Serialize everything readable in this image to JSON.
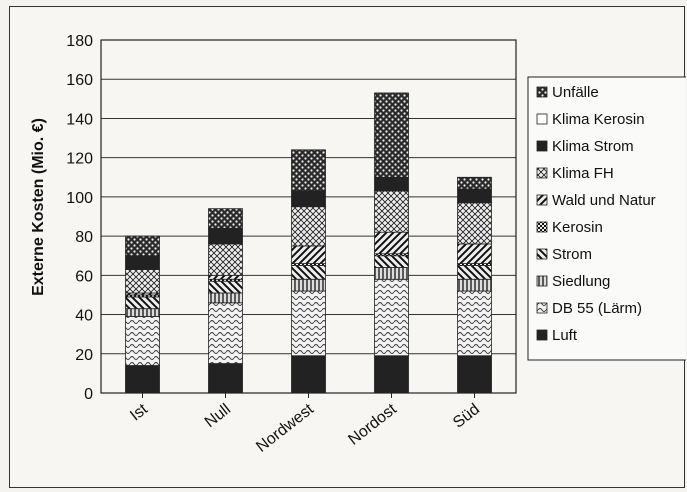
{
  "chart_data": {
    "type": "bar",
    "stacked": true,
    "categories": [
      "Ist",
      "Null",
      "Nordwest",
      "Nordost",
      "Süd"
    ],
    "ylabel": "Externe Kosten (Mio. €)",
    "xlabel": "",
    "title": "",
    "ylim": [
      0,
      180
    ],
    "yticks": [
      0,
      20,
      40,
      60,
      80,
      100,
      120,
      140,
      160,
      180
    ],
    "grid": true,
    "legend_position": "right",
    "series": [
      {
        "name": "Luft",
        "values": [
          14,
          15,
          19,
          19,
          19
        ],
        "pattern": "solid-dark"
      },
      {
        "name": "DB 55 (Lärm)",
        "values": [
          25,
          31,
          33,
          39,
          33
        ],
        "pattern": "waves"
      },
      {
        "name": "Siedlung",
        "values": [
          4,
          5,
          6,
          6,
          6
        ],
        "pattern": "vertical-lines"
      },
      {
        "name": "Strom",
        "values": [
          6,
          6,
          7,
          6,
          7
        ],
        "pattern": "diagonal-back"
      },
      {
        "name": "Kerosin",
        "values": [
          1,
          1,
          1,
          1,
          1
        ],
        "pattern": "checker"
      },
      {
        "name": "Wald und Natur",
        "values": [
          1,
          2,
          9,
          11,
          10
        ],
        "pattern": "diagonal-forward"
      },
      {
        "name": "Klima FH",
        "values": [
          12,
          16,
          20,
          21,
          21
        ],
        "pattern": "crosshatch"
      },
      {
        "name": "Klima Strom",
        "values": [
          7,
          8,
          8,
          7,
          7
        ],
        "pattern": "solid-dark"
      },
      {
        "name": "Klima Kerosin",
        "values": [
          0,
          0,
          0,
          0,
          0
        ],
        "pattern": "white"
      },
      {
        "name": "Unfälle",
        "values": [
          10,
          10,
          21,
          43,
          6
        ],
        "pattern": "dots"
      }
    ]
  }
}
